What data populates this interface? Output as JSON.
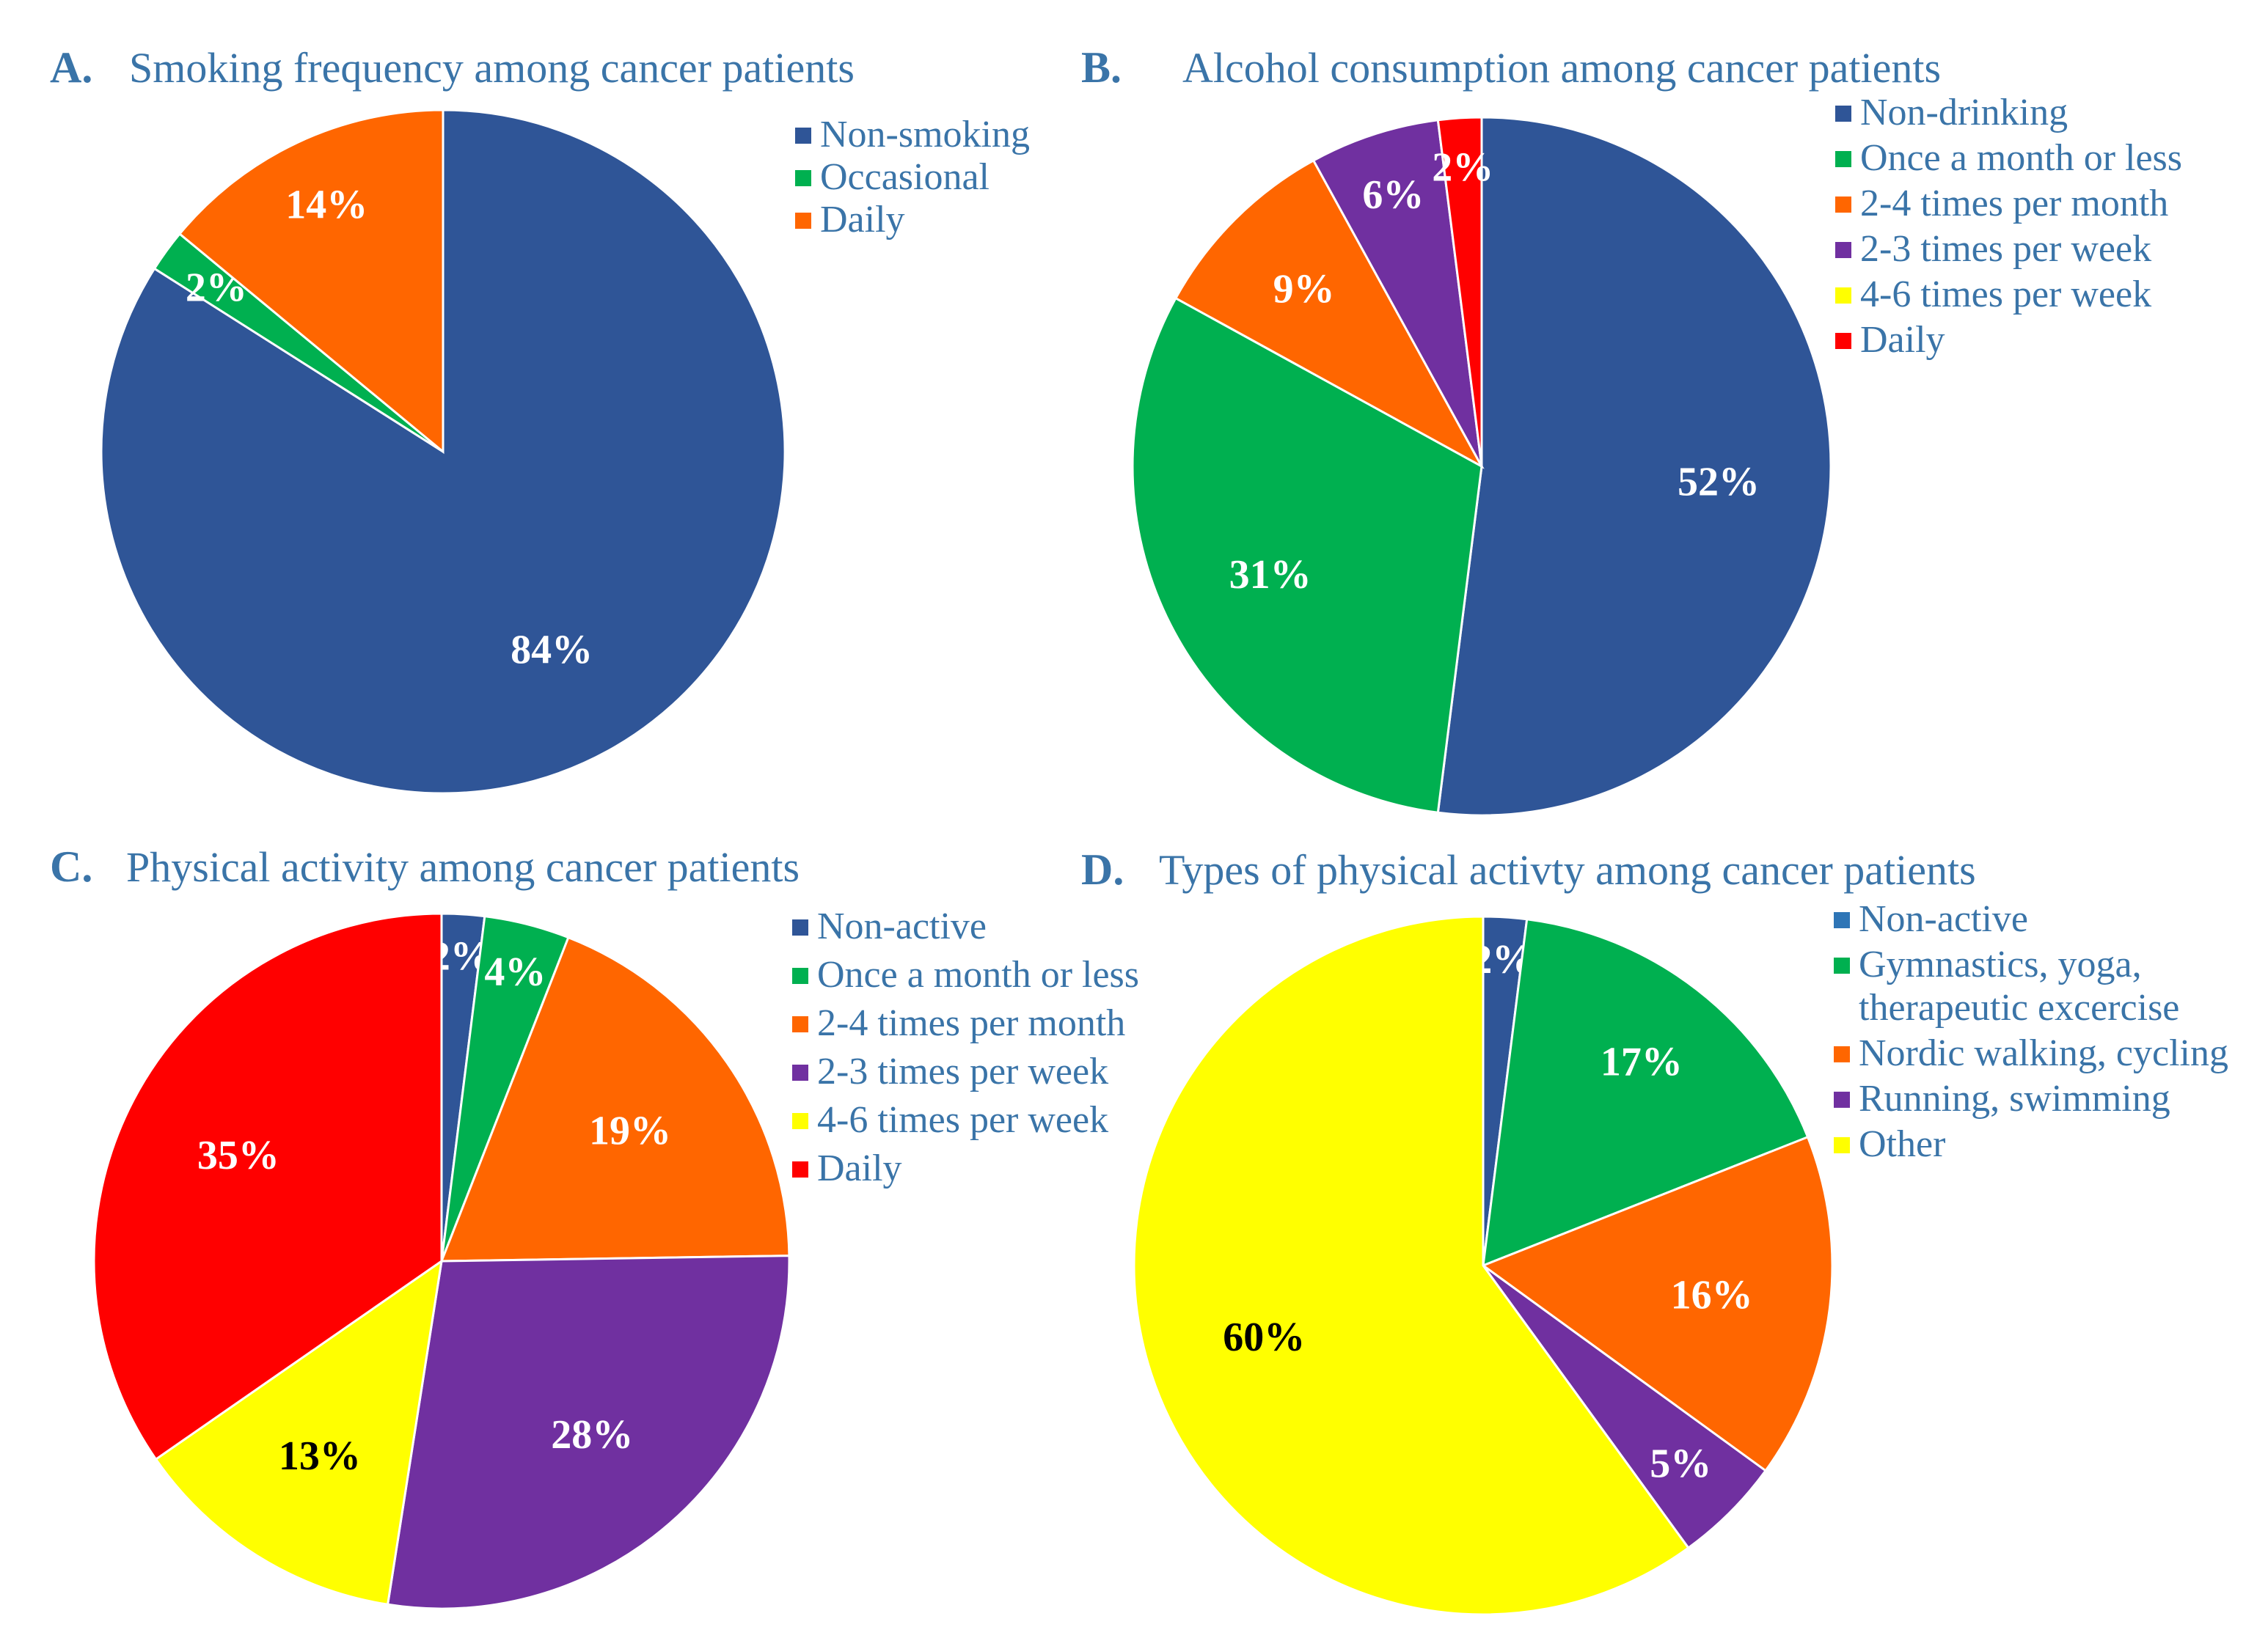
{
  "chart_data": [
    {
      "type": "pie",
      "panel": "A.",
      "title": "Smoking frequency among cancer patients",
      "categories": [
        "Non-smoking",
        "Occasional",
        "Daily"
      ],
      "values": [
        84,
        2,
        14
      ],
      "labels": [
        "84%",
        "2%",
        "14%"
      ],
      "colors": [
        "#2f5597",
        "#00b050",
        "#ff6600"
      ],
      "label_colors": [
        "#ffffff",
        "#ffffff",
        "#ffffff"
      ],
      "direction": "clockwise from 12 o'clock",
      "legend": [
        "Non-smoking",
        "Occasional",
        "Daily"
      ]
    },
    {
      "type": "pie",
      "panel": "B.",
      "title": "Alcohol consumption among cancer patients",
      "categories": [
        "Non-drinking",
        "Once a month or less",
        "2-4 times per month",
        "2-3 times per week",
        "4-6 times per week",
        "Daily"
      ],
      "values": [
        52,
        31,
        9,
        6,
        0,
        2
      ],
      "labels": [
        "52%",
        "31%",
        "9%",
        "6%",
        "",
        "2%"
      ],
      "colors": [
        "#2f5597",
        "#00b050",
        "#ff6600",
        "#7030a0",
        "#ffff00",
        "#ff0000"
      ],
      "label_colors": [
        "#ffffff",
        "#ffffff",
        "#ffffff",
        "#ffffff",
        "#000000",
        "#ffffff"
      ],
      "direction": "clockwise from 12 o'clock",
      "legend": [
        "Non-drinking",
        "Once a month or less",
        "2-4 times per month",
        "2-3 times per week",
        "4-6 times per week",
        "Daily"
      ]
    },
    {
      "type": "pie",
      "panel": "C.",
      "title": "Physical activity among cancer patients",
      "categories": [
        "Non-active",
        "Once a month or less",
        "2-4 times per month",
        "2-3 times per week",
        "4-6 times per week",
        "Daily"
      ],
      "values": [
        2,
        4,
        19,
        28,
        13,
        35
      ],
      "labels": [
        "2%",
        "4%",
        "19%",
        "28%",
        "13%",
        "35%"
      ],
      "colors": [
        "#2f5597",
        "#00b050",
        "#ff6600",
        "#7030a0",
        "#ffff00",
        "#ff0000"
      ],
      "label_colors": [
        "#ffffff",
        "#ffffff",
        "#ffffff",
        "#ffffff",
        "#000000",
        "#ffffff"
      ],
      "direction": "clockwise from 12 o'clock",
      "legend": [
        "Non-active",
        "Once a month or less",
        "2-4 times per month",
        "2-3 times per week",
        "4-6 times per week",
        "Daily"
      ]
    },
    {
      "type": "pie",
      "panel": "D.",
      "title": "Types of physical activty among cancer patients",
      "categories": [
        "Non-active",
        "Gymnastics, yoga, therapeutic excercise",
        "Nordic walking, cycling",
        "Running, swimming",
        "Other"
      ],
      "values": [
        2,
        17,
        16,
        5,
        60
      ],
      "labels": [
        "2%",
        "17%",
        "16%",
        "5%",
        "60%"
      ],
      "colors": [
        "#2f5597",
        "#00b050",
        "#ff6600",
        "#7030a0",
        "#ffff00"
      ],
      "label_colors": [
        "#ffffff",
        "#ffffff",
        "#ffffff",
        "#ffffff",
        "#000000"
      ],
      "direction": "clockwise from 12 o'clock",
      "legend": [
        "Non-active",
        [
          "Gymnastics, yoga,",
          "therapeutic excercise"
        ],
        "Nordic walking, cycling",
        "Running, swimming",
        "Other"
      ],
      "legend_colors": [
        "#2e75b6",
        "#00b050",
        "#ff6600",
        "#7030a0",
        "#ffff00"
      ]
    }
  ]
}
